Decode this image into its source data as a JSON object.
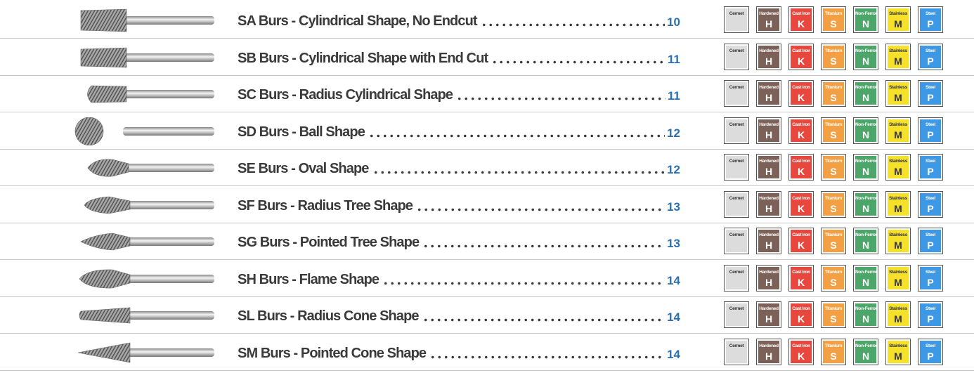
{
  "rows": [
    {
      "title": "SA Burs - Cylindrical Shape, No Endcut",
      "page": "10"
    },
    {
      "title": "SB Burs - Cylindrical Shape with End Cut",
      "page": "11"
    },
    {
      "title": "SC Burs - Radius Cylindrical Shape",
      "page": "11"
    },
    {
      "title": "SD Burs - Ball Shape",
      "page": "12"
    },
    {
      "title": "SE Burs - Oval Shape",
      "page": "12"
    },
    {
      "title": "SF Burs - Radius Tree Shape",
      "page": "13"
    },
    {
      "title": "SG Burs - Pointed Tree Shape",
      "page": "13"
    },
    {
      "title": "SH Burs - Flame Shape",
      "page": "14"
    },
    {
      "title": "SL Burs - Radius Cone Shape",
      "page": "14"
    },
    {
      "title": "SM Burs - Pointed Cone Shape",
      "page": "14"
    }
  ],
  "materials": [
    {
      "name": "Cermet"
    },
    {
      "name": "Hardened",
      "letter": "H"
    },
    {
      "name": "Cast Iron",
      "letter": "K"
    },
    {
      "name": "Titanium",
      "letter": "S"
    },
    {
      "name": "Non-Ferrous",
      "letter": "N"
    },
    {
      "name": "Stainless",
      "letter": "M"
    },
    {
      "name": "Steel",
      "letter": "P"
    }
  ]
}
